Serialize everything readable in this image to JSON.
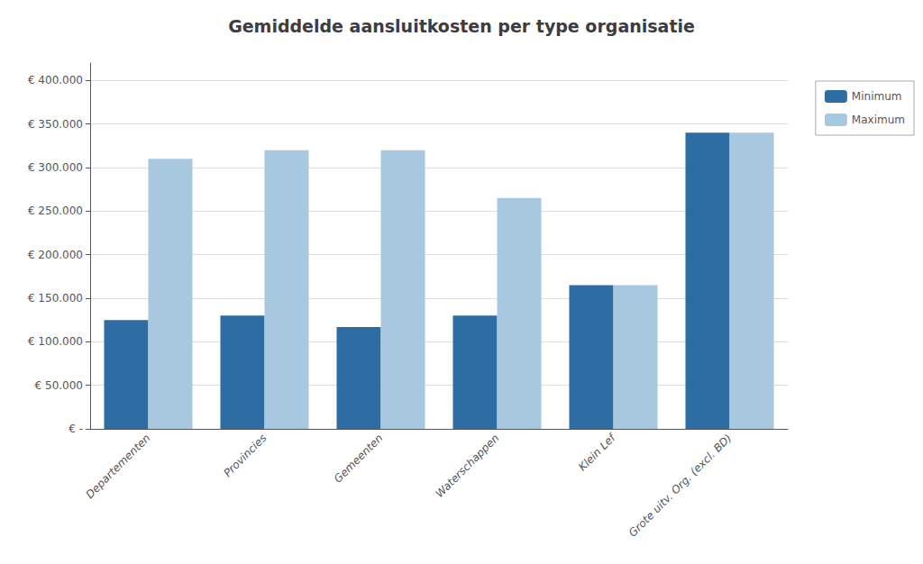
{
  "chart_data": {
    "type": "bar",
    "title": "Gemiddelde aansluitkosten per type organisatie",
    "categories": [
      "Departementen",
      "Provincies",
      "Gemeenten",
      "Waterschappen",
      "Klein Lef",
      "Grote uitv. Org. (excl. BD)"
    ],
    "series": [
      {
        "name": "Minimum",
        "color": "#2E6DA4",
        "values": [
          125000,
          130000,
          117000,
          130000,
          165000,
          340000
        ]
      },
      {
        "name": "Maximum",
        "color": "#A8C8E0",
        "values": [
          310000,
          320000,
          320000,
          265000,
          165000,
          340000
        ]
      }
    ],
    "ylim": [
      0,
      420000
    ],
    "yticks": [
      {
        "value": 0,
        "label": "€ -"
      },
      {
        "value": 50000,
        "label": "€ 50.000"
      },
      {
        "value": 100000,
        "label": "€ 100.000"
      },
      {
        "value": 150000,
        "label": "€ 150.000"
      },
      {
        "value": 200000,
        "label": "€ 200.000"
      },
      {
        "value": 250000,
        "label": "€ 250.000"
      },
      {
        "value": 300000,
        "label": "€ 300.000"
      },
      {
        "value": 350000,
        "label": "€ 350.000"
      },
      {
        "value": 400000,
        "label": "€ 400.000"
      }
    ],
    "grid": true,
    "legend": "upper right"
  }
}
